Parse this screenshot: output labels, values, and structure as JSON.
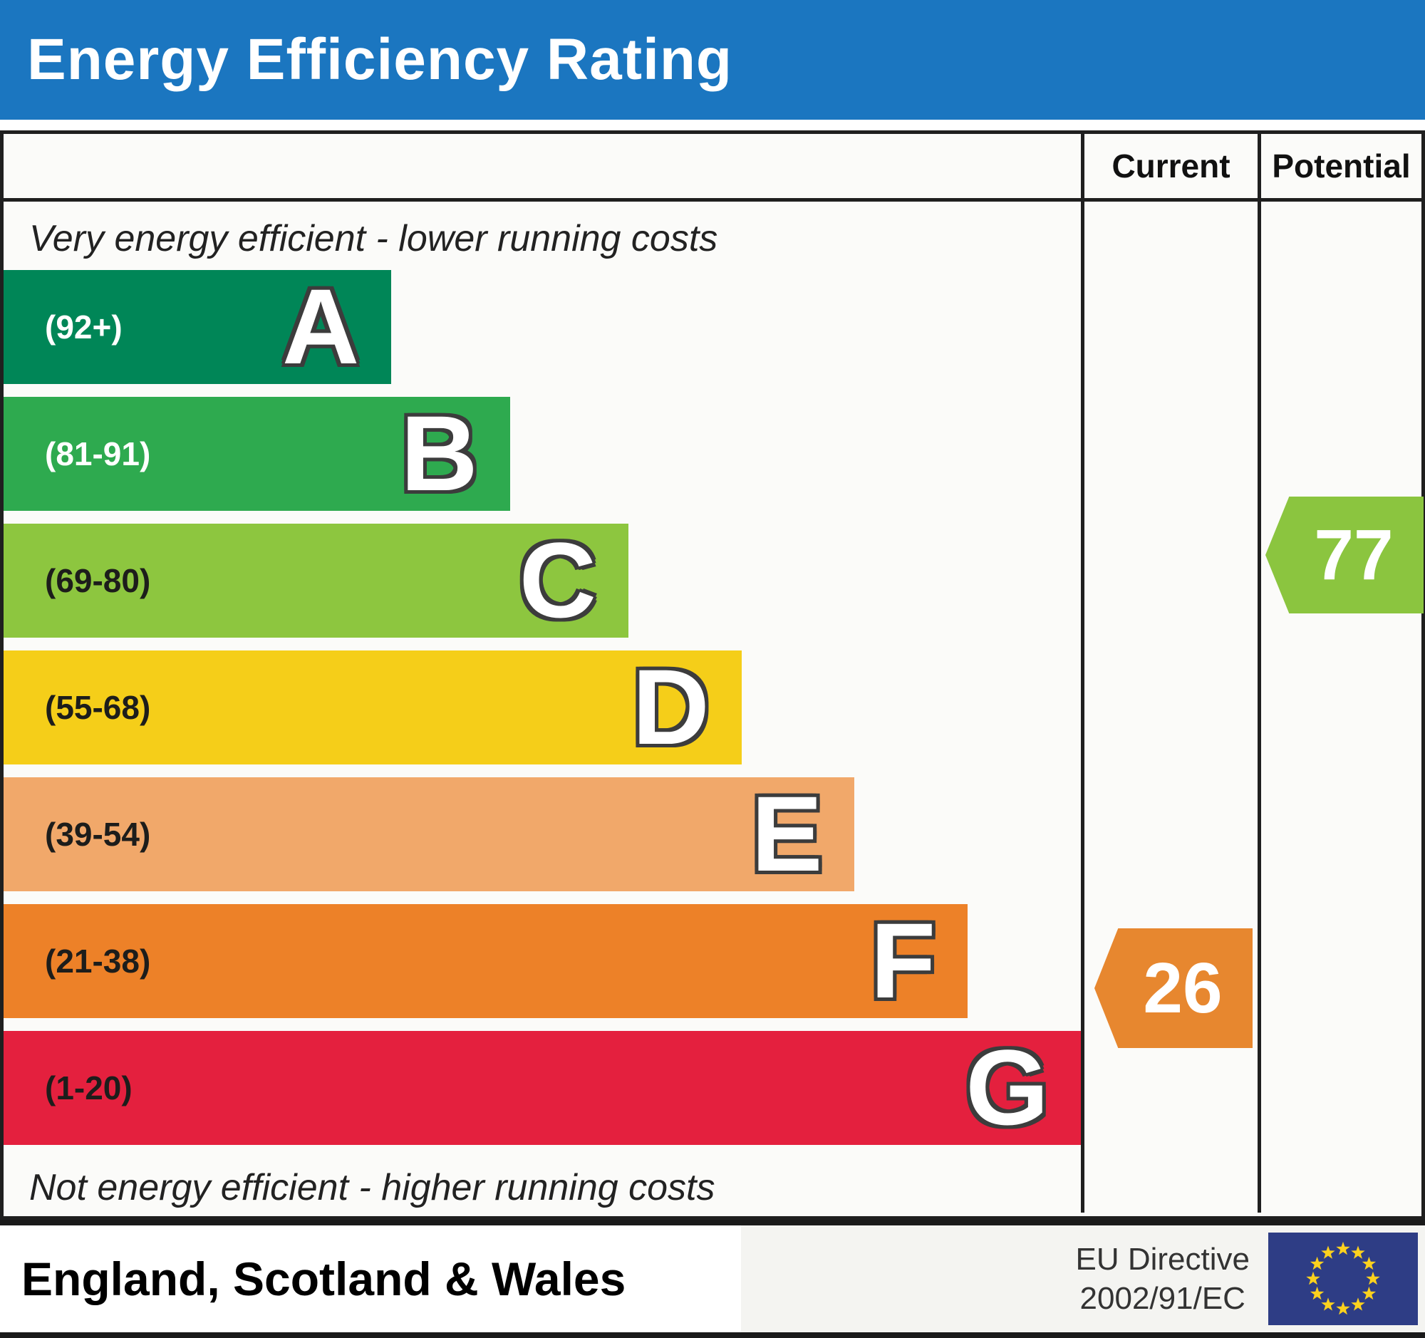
{
  "title": "Energy Efficiency Rating",
  "columns": {
    "current": "Current",
    "potential": "Potential"
  },
  "notes": {
    "top": "Very energy efficient - lower running costs",
    "bottom": "Not energy efficient - higher running costs"
  },
  "chart_data": {
    "type": "bar",
    "bands": [
      {
        "letter": "A",
        "range": "(92+)",
        "color": "#008657",
        "width_pct": 36,
        "label_color": "#ffffff"
      },
      {
        "letter": "B",
        "range": "(81-91)",
        "color": "#2eaa4f",
        "width_pct": 47,
        "label_color": "#ffffff"
      },
      {
        "letter": "C",
        "range": "(69-80)",
        "color": "#8dc63f",
        "width_pct": 58,
        "label_color": "#1d1d1b"
      },
      {
        "letter": "D",
        "range": "(55-68)",
        "color": "#f5ce19",
        "width_pct": 68.5,
        "label_color": "#1d1d1b"
      },
      {
        "letter": "E",
        "range": "(39-54)",
        "color": "#f1a86a",
        "width_pct": 79,
        "label_color": "#1d1d1b"
      },
      {
        "letter": "F",
        "range": "(21-38)",
        "color": "#ed8128",
        "width_pct": 89.5,
        "label_color": "#1d1d1b"
      },
      {
        "letter": "G",
        "range": "(1-20)",
        "color": "#e4203e",
        "width_pct": 100,
        "label_color": "#1d1d1b"
      }
    ],
    "current": {
      "value": "26",
      "band": "F",
      "color": "#e7872f"
    },
    "potential": {
      "value": "77",
      "band": "C",
      "color": "#8bc53f"
    }
  },
  "footer": {
    "region": "England, Scotland & Wales",
    "directive_line1": "EU Directive",
    "directive_line2": "2002/91/EC",
    "eu_flag": {
      "background": "#2e3d85",
      "star_color": "#fcd11e"
    }
  },
  "theme": {
    "header_blue": "#1b76c0",
    "border": "#1f1f1f"
  }
}
